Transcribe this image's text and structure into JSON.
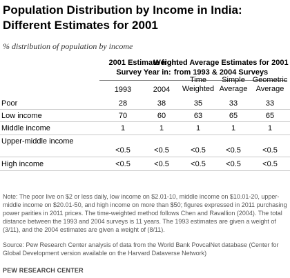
{
  "title": "Population Distribution by Income in India: Different Estimates for 2001",
  "subtitle": "% distribution of population by income",
  "chart_data": {
    "type": "table",
    "groups": [
      {
        "label": "2001 Estimate from Survey Year in:"
      },
      {
        "label": "Weighted Average Estimates for 2001 from 1993 & 2004 Surveys"
      }
    ],
    "columns": [
      "1993",
      "2004",
      "Time Weighted",
      "Simple Average",
      "Geometric Average"
    ],
    "rows": [
      {
        "label": "Poor",
        "values": [
          "28",
          "38",
          "35",
          "33",
          "33"
        ]
      },
      {
        "label": "Low income",
        "values": [
          "70",
          "60",
          "63",
          "65",
          "65"
        ]
      },
      {
        "label": "Middle income",
        "values": [
          "1",
          "1",
          "1",
          "1",
          "1"
        ]
      },
      {
        "label": "Upper-middle income",
        "values": [
          "<0.5",
          "<0.5",
          "<0.5",
          "<0.5",
          "<0.5"
        ]
      },
      {
        "label": "High income",
        "values": [
          "<0.5",
          "<0.5",
          "<0.5",
          "<0.5",
          "<0.5"
        ]
      }
    ]
  },
  "note": "Note: The poor live on $2 or less daily, low income on $2.01-10, middle income on $10.01-20, upper-middle income on $20.01-50, and high income on more than $50; figures expressed in 2011 purchasing power parities in 2011 prices. The time-weighted method follows Chen and Ravallion (2004). The total distance between the 1993 and 2004 surveys is 11 years. The 1993 estimates are given a weight of (3/11), and the 2004 estimates are given a weight of (8/11).",
  "source": "Source: Pew Research Center analysis of data from the World Bank PovcalNet database (Center for Global Development version available on the Harvard Dataverse Network)",
  "brand": "PEW RESEARCH CENTER"
}
